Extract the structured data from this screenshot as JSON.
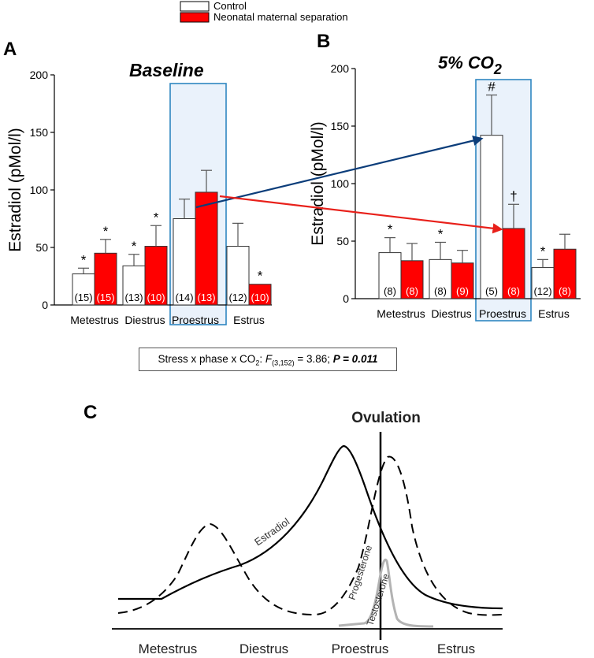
{
  "legend": {
    "control_label": "Control",
    "nms_label": "Neonatal maternal separation"
  },
  "colors": {
    "control": "#ffffff",
    "nms": "#ff0000",
    "highlight_fill": "#eaf2fb",
    "highlight_border": "#2e86c1",
    "control_arrow": "#0b3d7a",
    "nms_arrow": "#e8201a"
  },
  "chart_data": [
    {
      "panel": "A",
      "type": "bar",
      "title": "Baseline",
      "ylabel": "Estradiol (pMol/l)",
      "ylim": [
        0,
        200
      ],
      "yticks": [
        "0",
        "50",
        "100",
        "150",
        "200"
      ],
      "categories": [
        "Metestrus",
        "Diestrus",
        "Proestrus",
        "Estrus"
      ],
      "highlight": "Proestrus",
      "series": [
        {
          "name": "Control",
          "values": [
            27,
            34,
            75,
            51
          ],
          "errors": [
            5,
            10,
            17,
            20
          ],
          "n": [
            "(15)",
            "(13)",
            "(14)",
            "(12)"
          ],
          "marks": [
            "*",
            "*",
            "",
            ""
          ]
        },
        {
          "name": "Neonatal maternal separation",
          "values": [
            45,
            51,
            98,
            18
          ],
          "errors": [
            12,
            18,
            19,
            0
          ],
          "n": [
            "(15)",
            "(10)",
            "(13)",
            "(10)"
          ],
          "marks": [
            "*",
            "*",
            "",
            "*"
          ]
        }
      ]
    },
    {
      "panel": "B",
      "type": "bar",
      "title": "5% CO",
      "title_sub": "2",
      "ylabel": "Estradiol (pMol/l)",
      "ylim": [
        0,
        200
      ],
      "yticks": [
        "0",
        "50",
        "100",
        "150",
        "200"
      ],
      "categories": [
        "Metestrus",
        "Diestrus",
        "Proestrus",
        "Estrus"
      ],
      "highlight": "Proestrus",
      "series": [
        {
          "name": "Control",
          "values": [
            40,
            34,
            142,
            27
          ],
          "errors": [
            13,
            15,
            35,
            7
          ],
          "n": [
            "(8)",
            "(8)",
            "(5)",
            "(12)"
          ],
          "marks": [
            "*",
            "*",
            "#",
            "*"
          ]
        },
        {
          "name": "Neonatal maternal separation",
          "values": [
            33,
            31,
            61,
            43
          ],
          "errors": [
            15,
            11,
            21,
            13
          ],
          "n": [
            "(8)",
            "(9)",
            "(8)",
            "(8)"
          ],
          "marks": [
            "",
            "",
            "†",
            ""
          ]
        }
      ]
    },
    {
      "panel": "C",
      "type": "line",
      "title": "Ovulation",
      "categories": [
        "Metestrus",
        "Diestrus",
        "Proestrus",
        "Estrus"
      ],
      "series": [
        {
          "name": "Estradiol",
          "style": "solid"
        },
        {
          "name": "Progesterone",
          "style": "dashed"
        },
        {
          "name": "Testosterone",
          "style": "gray"
        }
      ]
    }
  ],
  "stats": {
    "prefix": "Stress x phase x CO",
    "prefix_sub": "2",
    "colon": ": ",
    "F": "F",
    "df": "(3,152)",
    "mid": " = 3.86; ",
    "p_label": "P = 0.011"
  }
}
